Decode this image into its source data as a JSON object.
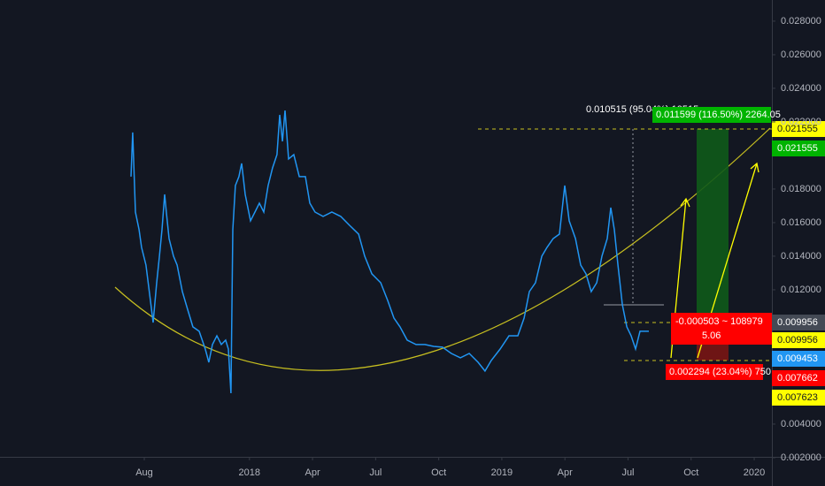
{
  "chart_data": {
    "type": "line",
    "color": "#2196f3",
    "x": [
      6.37,
      6.45,
      6.58,
      6.75,
      6.87,
      7.08,
      7.29,
      7.42,
      7.59,
      7.72,
      7.84,
      7.97,
      8.05,
      8.18,
      8.39,
      8.56,
      8.81,
      9.06,
      9.31,
      9.61,
      9.9,
      10.07,
      10.24,
      10.45,
      10.66,
      10.87,
      11.0,
      11.12,
      11.21,
      11.33,
      11.5,
      11.63,
      11.8,
      12.05,
      12.26,
      12.47,
      12.68,
      12.89,
      13.1,
      13.31,
      13.44,
      13.57,
      13.69,
      13.86,
      14.11,
      14.37,
      14.66,
      14.87,
      15.12,
      15.5,
      15.92,
      16.34,
      16.76,
      17.19,
      17.48,
      17.82,
      18.24,
      18.57,
      18.87,
      19.16,
      19.5,
      19.92,
      20.34,
      20.76,
      21.18,
      21.6,
      22.03,
      22.45,
      22.87,
      23.2,
      23.5,
      23.92,
      24.34,
      24.76,
      25.06,
      25.31,
      25.6,
      25.9,
      26.15,
      26.44,
      26.74,
      26.99,
      27.2,
      27.5,
      27.75,
      28.0,
      28.25,
      28.51,
      28.76,
      29.01,
      29.18,
      29.35,
      29.52,
      29.73,
      29.94,
      30.15,
      30.36,
      30.57,
      30.86,
      30.99
    ],
    "values": [
      0.01874,
      0.02137,
      0.01663,
      0.01558,
      0.01453,
      0.01347,
      0.01137,
      0.01005,
      0.01242,
      0.014,
      0.01558,
      0.01768,
      0.01663,
      0.01505,
      0.014,
      0.01347,
      0.01189,
      0.01084,
      0.00979,
      0.00953,
      0.00847,
      0.00768,
      0.00874,
      0.00926,
      0.00874,
      0.009,
      0.00847,
      0.00584,
      0.01558,
      0.01821,
      0.01874,
      0.01953,
      0.01768,
      0.01611,
      0.01663,
      0.01716,
      0.01663,
      0.01821,
      0.01926,
      0.02005,
      0.02242,
      0.02084,
      0.02268,
      0.01979,
      0.02005,
      0.01874,
      0.01874,
      0.01716,
      0.01663,
      0.01637,
      0.01663,
      0.01637,
      0.01584,
      0.01532,
      0.014,
      0.01295,
      0.01242,
      0.01137,
      0.01032,
      0.00979,
      0.009,
      0.00874,
      0.00874,
      0.00863,
      0.00858,
      0.00821,
      0.00795,
      0.00821,
      0.00768,
      0.00716,
      0.00779,
      0.00847,
      0.00926,
      0.00926,
      0.01032,
      0.01189,
      0.01242,
      0.014,
      0.01453,
      0.01505,
      0.01532,
      0.01821,
      0.01611,
      0.01505,
      0.01347,
      0.01295,
      0.01189,
      0.01242,
      0.014,
      0.01505,
      0.01689,
      0.01558,
      0.01347,
      0.01111,
      0.00979,
      0.00926,
      0.00847,
      0.00953,
      0.00953,
      0.00953
    ],
    "xlim": [
      0.14,
      36.84
    ],
    "ylim": [
      0.00205,
      0.02926
    ],
    "xticks": [
      {
        "value": 7,
        "label": "Aug"
      },
      {
        "value": 12,
        "label": "2018"
      },
      {
        "value": 15,
        "label": "Apr"
      },
      {
        "value": 18,
        "label": "Jul"
      },
      {
        "value": 21,
        "label": "Oct"
      },
      {
        "value": 24,
        "label": "2019"
      },
      {
        "value": 27,
        "label": "Apr"
      },
      {
        "value": 30,
        "label": "Jul"
      },
      {
        "value": 33,
        "label": "Oct"
      },
      {
        "value": 36,
        "label": "2020"
      }
    ],
    "yticks": [
      {
        "value": 0.002,
        "label": "0.002000"
      },
      {
        "value": 0.004,
        "label": "0.004000"
      },
      {
        "value": 0.012,
        "label": "0.012000"
      },
      {
        "value": 0.014,
        "label": "0.014000"
      },
      {
        "value": 0.016,
        "label": "0.016000"
      },
      {
        "value": 0.018,
        "label": "0.018000"
      },
      {
        "value": 0.022,
        "label": "0.022000"
      },
      {
        "value": 0.024,
        "label": "0.024000"
      },
      {
        "value": 0.026,
        "label": "0.026000"
      },
      {
        "value": 0.028,
        "label": "0.028000"
      }
    ],
    "price_labels": [
      {
        "label": "0.021555",
        "color": "#ffff00"
      },
      {
        "label": "0.021555",
        "color": "#00b300"
      },
      {
        "label": "0.009956",
        "color": "#444a55"
      },
      {
        "label": "0.009956",
        "color": "#ffff00"
      },
      {
        "label": "0.009453",
        "color": "#2196f3"
      },
      {
        "label": "0.007662",
        "color": "#ff0000"
      },
      {
        "label": "0.007623",
        "color": "#ffff00"
      }
    ],
    "annotations": [
      "0.010515 (95.04%) 10515",
      "0.011599 (116.50%) 2264.05",
      "-0.000503 ~ 108979",
      "5.06",
      "0.002294 (23.04%) 750"
    ]
  }
}
